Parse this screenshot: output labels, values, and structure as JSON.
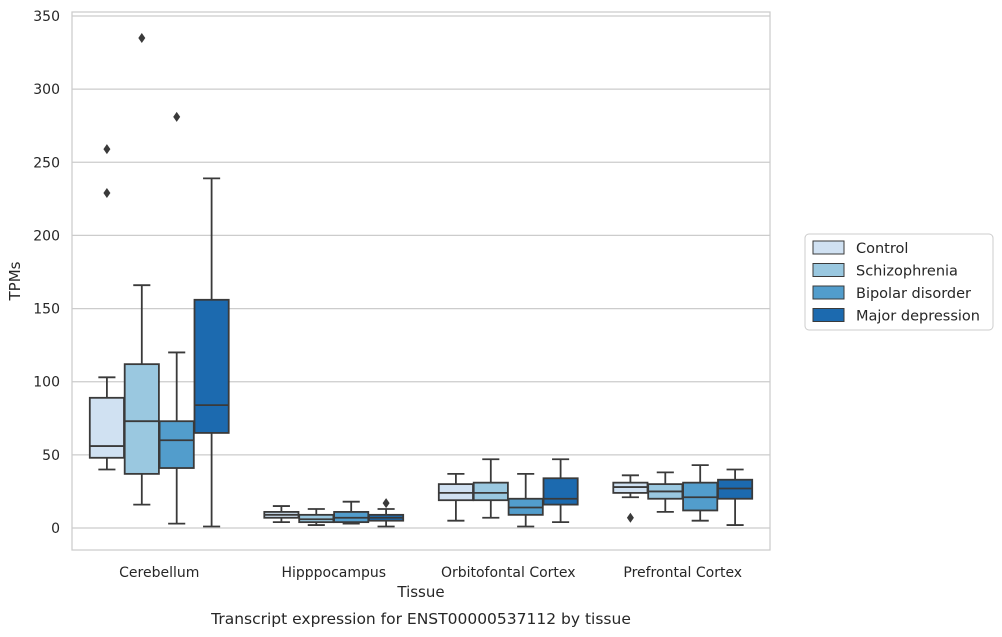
{
  "chart_data": {
    "type": "box",
    "title": "",
    "caption": "Transcript expression for ENST00000537112 by tissue",
    "xlabel": "Tissue",
    "ylabel": "TPMs",
    "ylim": [
      -15,
      353
    ],
    "yticks": [
      0,
      50,
      100,
      150,
      200,
      250,
      300,
      350
    ],
    "grid": "horizontal",
    "legend_position": "right",
    "categories": [
      "Cerebellum",
      "Hipppocampus",
      "Orbitofontal Cortex",
      "Prefrontal Cortex"
    ],
    "series": [
      {
        "name": "Control",
        "color": "#d0e1f2",
        "boxes": [
          {
            "whislo": 40,
            "q1": 48,
            "med": 56,
            "q3": 89,
            "whishi": 103,
            "fliers": [
              259,
              229
            ]
          },
          {
            "whislo": 4,
            "q1": 7,
            "med": 9,
            "q3": 11,
            "whishi": 15,
            "fliers": []
          },
          {
            "whislo": 5,
            "q1": 19,
            "med": 24,
            "q3": 30,
            "whishi": 37,
            "fliers": []
          },
          {
            "whislo": 21,
            "q1": 24,
            "med": 28,
            "q3": 31,
            "whishi": 36,
            "fliers": [
              7
            ]
          }
        ]
      },
      {
        "name": "Schizophrenia",
        "color": "#9ac8e0",
        "boxes": [
          {
            "whislo": 16,
            "q1": 37,
            "med": 73,
            "q3": 112,
            "whishi": 166,
            "fliers": [
              335
            ]
          },
          {
            "whislo": 2,
            "q1": 4,
            "med": 6,
            "q3": 9,
            "whishi": 13,
            "fliers": []
          },
          {
            "whislo": 7,
            "q1": 19,
            "med": 24,
            "q3": 31,
            "whishi": 47,
            "fliers": []
          },
          {
            "whislo": 11,
            "q1": 20,
            "med": 25,
            "q3": 30,
            "whishi": 38,
            "fliers": []
          }
        ]
      },
      {
        "name": "Bipolar disorder",
        "color": "#529dcc",
        "boxes": [
          {
            "whislo": 3,
            "q1": 41,
            "med": 60,
            "q3": 73,
            "whishi": 120,
            "fliers": [
              281
            ]
          },
          {
            "whislo": 3,
            "q1": 4,
            "med": 7,
            "q3": 11,
            "whishi": 18,
            "fliers": []
          },
          {
            "whislo": 1,
            "q1": 9,
            "med": 14,
            "q3": 20,
            "whishi": 37,
            "fliers": []
          },
          {
            "whislo": 5,
            "q1": 12,
            "med": 21,
            "q3": 31,
            "whishi": 43,
            "fliers": []
          }
        ]
      },
      {
        "name": "Major depression",
        "color": "#1c6aaf",
        "boxes": [
          {
            "whislo": 1,
            "q1": 65,
            "med": 84,
            "q3": 156,
            "whishi": 239,
            "fliers": []
          },
          {
            "whislo": 1,
            "q1": 5,
            "med": 7,
            "q3": 9,
            "whishi": 13,
            "fliers": [
              17
            ]
          },
          {
            "whislo": 4,
            "q1": 16,
            "med": 20,
            "q3": 34,
            "whishi": 47,
            "fliers": []
          },
          {
            "whislo": 2,
            "q1": 20,
            "med": 27,
            "q3": 33,
            "whishi": 40,
            "fliers": []
          }
        ]
      }
    ]
  }
}
